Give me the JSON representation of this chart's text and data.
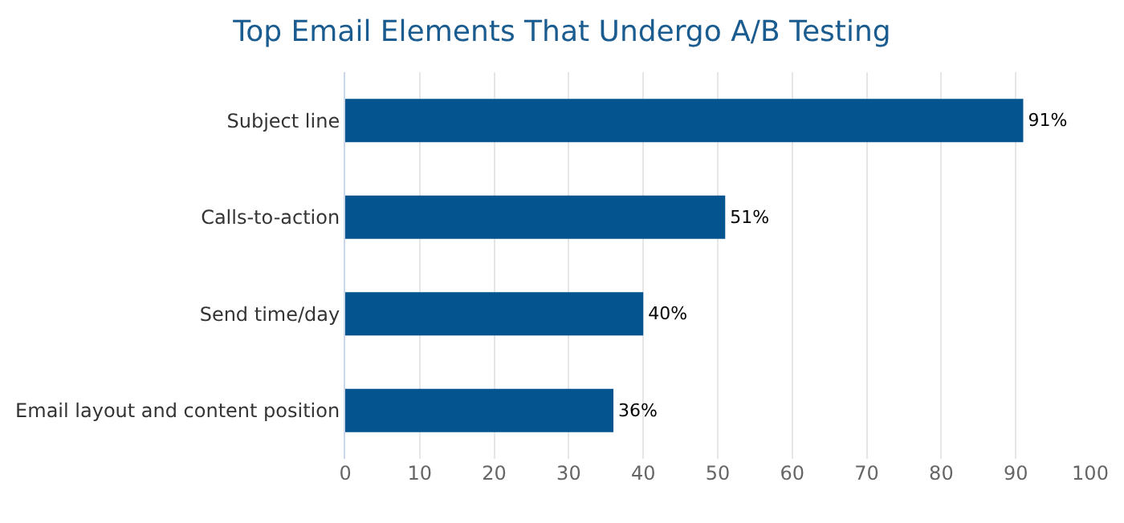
{
  "chart_data": {
    "type": "bar",
    "orientation": "horizontal",
    "title": "Top Email Elements That Undergo A/B Testing",
    "categories": [
      "Subject line",
      "Calls-to-action",
      "Send time/day",
      "Email layout and content position"
    ],
    "values": [
      91,
      51,
      40,
      36
    ],
    "value_labels": [
      "91%",
      "51%",
      "40%",
      "36%"
    ],
    "color": "#04548f",
    "xlim": [
      0,
      100
    ],
    "xticks": [
      0,
      10,
      20,
      30,
      40,
      50,
      60,
      70,
      80,
      90,
      100
    ],
    "grid": "x",
    "legend": false
  }
}
